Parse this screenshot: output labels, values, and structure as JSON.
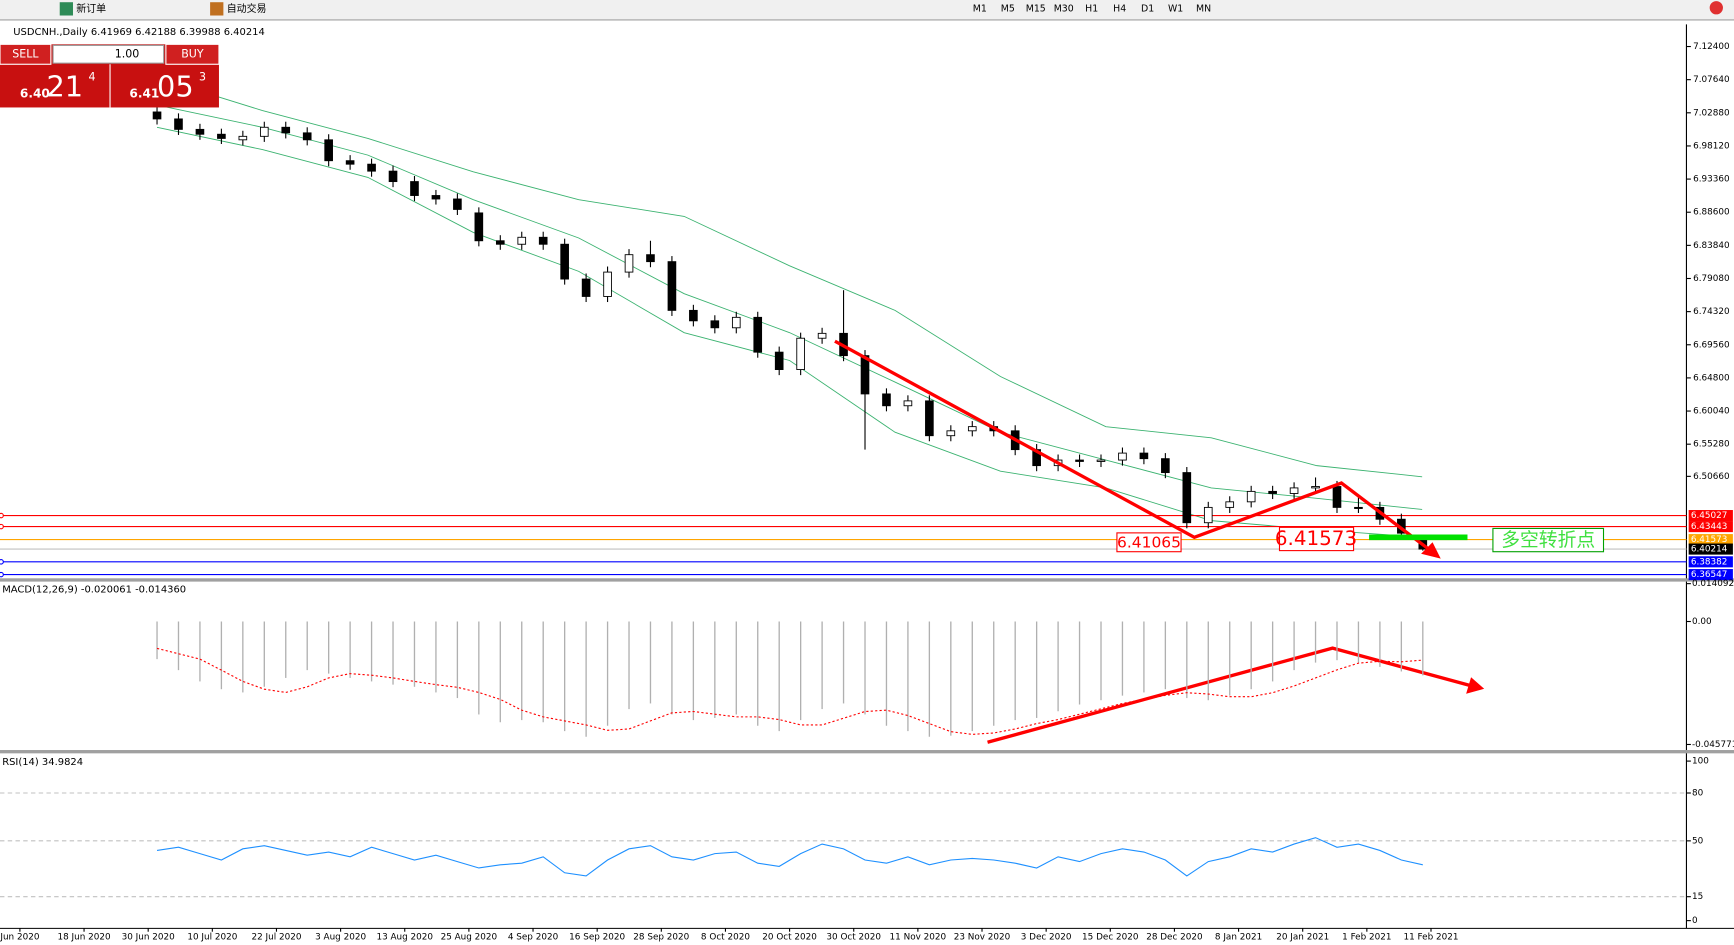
{
  "toolbar": {
    "new_order": "新订单",
    "auto_trading": "自动交易",
    "timeframes": [
      "M1",
      "M5",
      "M15",
      "M30",
      "H1",
      "H4",
      "D1",
      "W1",
      "MN"
    ]
  },
  "trade_panel": {
    "sell": "SELL",
    "buy": "BUY",
    "volume": "1.00",
    "bid": {
      "big": "6.40",
      "pips": "21",
      "frac": "4"
    },
    "ask": {
      "big": "6.41",
      "pips": "05",
      "frac": "3"
    }
  },
  "chart": {
    "header": "USDCNH.,Daily  6.41969 6.42188 6.39988 6.40214",
    "candles": {
      "open": [
        7.03,
        7.02,
        7.005,
        6.998,
        6.99,
        6.995,
        7.008,
        7.0,
        6.99,
        6.96,
        6.955,
        6.945,
        6.93,
        6.91,
        6.905,
        6.885,
        6.845,
        6.84,
        6.85,
        6.84,
        6.79,
        6.765,
        6.8,
        6.825,
        6.815,
        6.745,
        6.73,
        6.72,
        6.735,
        6.685,
        6.66,
        6.705,
        6.712,
        6.68,
        6.625,
        6.608,
        6.615,
        6.565,
        6.572,
        6.578,
        6.572,
        6.545,
        6.522,
        6.53,
        6.528,
        6.53,
        6.54,
        6.532,
        6.512,
        6.44,
        6.462,
        6.47,
        6.485,
        6.482,
        6.49,
        6.492,
        6.462,
        6.462,
        6.445,
        6.41969
      ],
      "high": [
        7.038,
        7.028,
        7.013,
        7.006,
        7.003,
        7.016,
        7.016,
        7.008,
        6.998,
        6.968,
        6.963,
        6.953,
        6.938,
        6.918,
        6.913,
        6.893,
        6.853,
        6.858,
        6.858,
        6.848,
        6.798,
        6.808,
        6.833,
        6.845,
        6.823,
        6.753,
        6.738,
        6.743,
        6.743,
        6.693,
        6.713,
        6.72,
        6.774,
        6.688,
        6.633,
        6.623,
        6.623,
        6.58,
        6.586,
        6.586,
        6.58,
        6.553,
        6.538,
        6.538,
        6.538,
        6.548,
        6.548,
        6.54,
        6.52,
        6.47,
        6.478,
        6.493,
        6.493,
        6.498,
        6.505,
        6.5,
        6.48,
        6.47,
        6.453,
        6.42188
      ],
      "low": [
        7.012,
        6.997,
        6.99,
        6.984,
        6.982,
        6.987,
        6.992,
        6.982,
        6.952,
        6.947,
        6.937,
        6.922,
        6.902,
        6.897,
        6.882,
        6.837,
        6.832,
        6.832,
        6.832,
        6.782,
        6.757,
        6.757,
        6.792,
        6.807,
        6.737,
        6.722,
        6.712,
        6.712,
        6.677,
        6.652,
        6.652,
        6.697,
        6.672,
        6.545,
        6.6,
        6.6,
        6.557,
        6.557,
        6.564,
        6.564,
        6.537,
        6.514,
        6.514,
        6.52,
        6.52,
        6.522,
        6.524,
        6.504,
        6.432,
        6.432,
        6.454,
        6.462,
        6.474,
        6.474,
        6.482,
        6.454,
        6.454,
        6.437,
        6.417,
        6.39988
      ],
      "close": [
        7.02,
        7.005,
        6.998,
        6.992,
        6.995,
        7.008,
        7.0,
        6.99,
        6.96,
        6.955,
        6.945,
        6.93,
        6.91,
        6.905,
        6.89,
        6.845,
        6.84,
        6.85,
        6.84,
        6.79,
        6.765,
        6.8,
        6.825,
        6.815,
        6.745,
        6.73,
        6.72,
        6.735,
        6.685,
        6.66,
        6.705,
        6.712,
        6.68,
        6.625,
        6.608,
        6.615,
        6.565,
        6.572,
        6.578,
        6.572,
        6.545,
        6.522,
        6.53,
        6.528,
        6.53,
        6.54,
        6.532,
        6.512,
        6.44,
        6.462,
        6.47,
        6.485,
        6.482,
        6.49,
        6.492,
        6.462,
        6.462,
        6.445,
        6.425,
        6.40214
      ]
    },
    "bands": {
      "upper": [
        7.079,
        7.032,
        6.992,
        6.944,
        6.904,
        6.88,
        6.809,
        6.745,
        6.65,
        6.578,
        6.562,
        6.522,
        6.506
      ],
      "middle": [
        7.04,
        7.008,
        6.968,
        6.904,
        6.849,
        6.769,
        6.713,
        6.642,
        6.57,
        6.53,
        6.49,
        6.475,
        6.459
      ],
      "lower": [
        7.008,
        6.976,
        6.936,
        6.857,
        6.801,
        6.713,
        6.673,
        6.57,
        6.514,
        6.49,
        6.443,
        6.43,
        6.419
      ],
      "color": "#3cb371"
    },
    "yticks": [
      {
        "value": 7.124,
        "label": "7.12400"
      },
      {
        "value": 7.0764,
        "label": "7.07640"
      },
      {
        "value": 7.0288,
        "label": "7.02880"
      },
      {
        "value": 6.9812,
        "label": "6.98120"
      },
      {
        "value": 6.9336,
        "label": "6.93360"
      },
      {
        "value": 6.886,
        "label": "6.88600"
      },
      {
        "value": 6.8384,
        "label": "6.83840"
      },
      {
        "value": 6.7908,
        "label": "6.79080"
      },
      {
        "value": 6.7432,
        "label": "6.74320"
      },
      {
        "value": 6.6956,
        "label": "6.69560"
      },
      {
        "value": 6.648,
        "label": "6.64800"
      },
      {
        "value": 6.6004,
        "label": "6.60040"
      },
      {
        "value": 6.5528,
        "label": "6.55280"
      },
      {
        "value": 6.5066,
        "label": "6.50660"
      }
    ],
    "price_lines": [
      {
        "value": 6.45027,
        "color": "#ff0000"
      },
      {
        "value": 6.43443,
        "color": "#ff0000"
      },
      {
        "value": 6.41573,
        "color": "#ffa500"
      },
      {
        "value": 6.40214,
        "color": "#000000"
      },
      {
        "value": 6.38382,
        "color": "#0000ff"
      },
      {
        "value": 6.36547,
        "color": "#0000ff"
      }
    ],
    "annotations": [
      "6.41065",
      "6.41573",
      "多空转折点"
    ],
    "dates": [
      "Jun 2020",
      "18 Jun 2020",
      "30 Jun 2020",
      "10 Jul 2020",
      "22 Jul 2020",
      "3 Aug 2020",
      "13 Aug 2020",
      "25 Aug 2020",
      "4 Sep 2020",
      "16 Sep 2020",
      "28 Sep 2020",
      "8 Oct 2020",
      "20 Oct 2020",
      "30 Oct 2020",
      "11 Nov 2020",
      "23 Nov 2020",
      "3 Dec 2020",
      "15 Dec 2020",
      "28 Dec 2020",
      "8 Jan 2021",
      "20 Jan 2021",
      "1 Feb 2021",
      "11 Feb 2021"
    ]
  },
  "macd": {
    "header": "MACD(12,26,9) -0.020061 -0.014360",
    "histogram": [
      -0.014,
      -0.0181,
      -0.0223,
      -0.0252,
      -0.0264,
      -0.0243,
      -0.021,
      -0.0181,
      -0.0194,
      -0.021,
      -0.0223,
      -0.0235,
      -0.0243,
      -0.0264,
      -0.0285,
      -0.0346,
      -0.0375,
      -0.0367,
      -0.0375,
      -0.0408,
      -0.0429,
      -0.0388,
      -0.0326,
      -0.0305,
      -0.0346,
      -0.0367,
      -0.0359,
      -0.0346,
      -0.0388,
      -0.0408,
      -0.0367,
      -0.0326,
      -0.0305,
      -0.0346,
      -0.0388,
      -0.0408,
      -0.0429,
      -0.0425,
      -0.0408,
      -0.0388,
      -0.0367,
      -0.0359,
      -0.0334,
      -0.0309,
      -0.0293,
      -0.0276,
      -0.0264,
      -0.0252,
      -0.0285,
      -0.0293,
      -0.0276,
      -0.0252,
      -0.0223,
      -0.0181,
      -0.0153,
      -0.0144,
      -0.0153,
      -0.0169,
      -0.0186,
      -0.020061
    ],
    "signal": [
      -0.01,
      -0.012,
      -0.014,
      -0.0181,
      -0.0223,
      -0.0252,
      -0.0264,
      -0.0243,
      -0.021,
      -0.0194,
      -0.02,
      -0.021,
      -0.0223,
      -0.0235,
      -0.0245,
      -0.0264,
      -0.029,
      -0.033,
      -0.0355,
      -0.037,
      -0.0385,
      -0.0405,
      -0.04,
      -0.037,
      -0.034,
      -0.0335,
      -0.0345,
      -0.0355,
      -0.0355,
      -0.0365,
      -0.0385,
      -0.0385,
      -0.036,
      -0.0335,
      -0.033,
      -0.035,
      -0.038,
      -0.041,
      -0.042,
      -0.0415,
      -0.04,
      -0.038,
      -0.0365,
      -0.0345,
      -0.0325,
      -0.0305,
      -0.029,
      -0.0275,
      -0.0265,
      -0.027,
      -0.028,
      -0.028,
      -0.0265,
      -0.024,
      -0.021,
      -0.018,
      -0.0155,
      -0.0148,
      -0.015,
      -0.01436
    ],
    "yticks": [
      0.014092,
      {
        "value": 0,
        "label": "0.00"
      },
      -0.045771
    ]
  },
  "rsi": {
    "header": "RSI(14) 34.9824",
    "color": "#1e90ff",
    "values": [
      44,
      46,
      42,
      38,
      45,
      47,
      44,
      41,
      43,
      40,
      46,
      42,
      38,
      41,
      37,
      33,
      35,
      36,
      40,
      30,
      28,
      38,
      45,
      47,
      40,
      38,
      42,
      43,
      36,
      34,
      42,
      48,
      45,
      38,
      36,
      40,
      35,
      38,
      39,
      38,
      36,
      33,
      40,
      37,
      42,
      45,
      43,
      38,
      28,
      37,
      40,
      45,
      43,
      48,
      52,
      46,
      48,
      44,
      38,
      34.9824
    ],
    "yticks": [
      100,
      80,
      50,
      15,
      0
    ]
  }
}
